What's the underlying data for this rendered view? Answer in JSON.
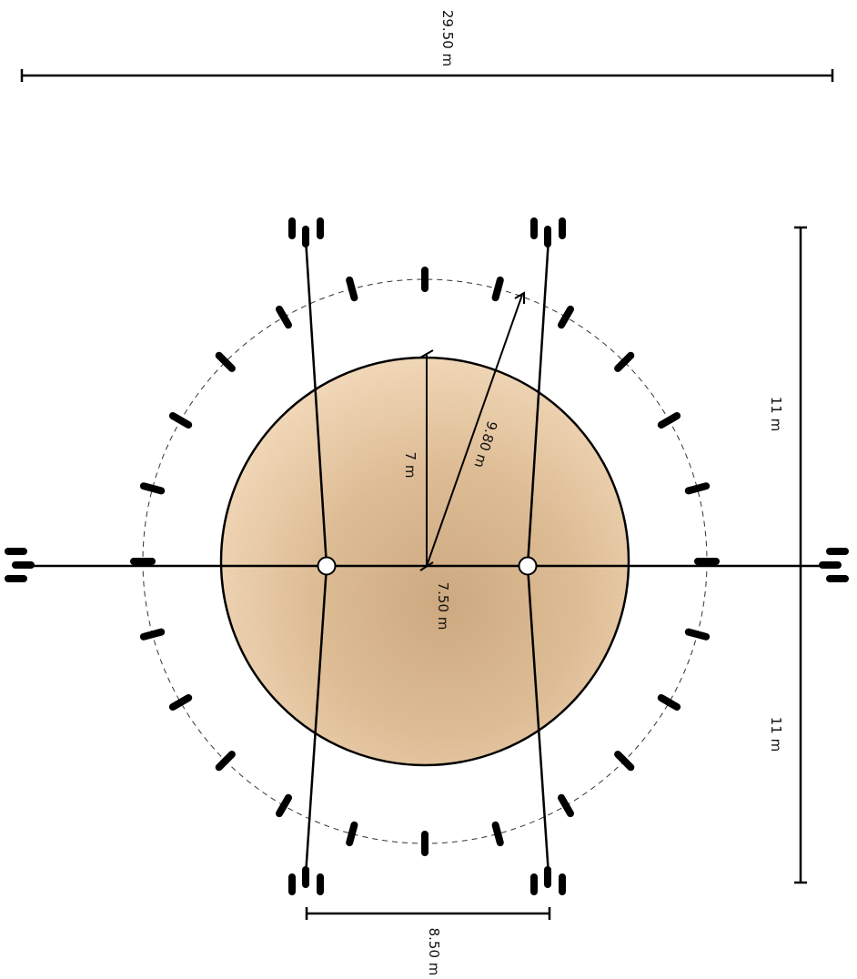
{
  "dimensions": {
    "overall_width": "29.50 m",
    "upper_half": "11 m",
    "lower_half": "11 m",
    "inner_radius": "7 m",
    "outer_radius": "9.80 m",
    "pole_offset": "7.50 m",
    "leg_spacing": "8.50 m"
  },
  "colors": {
    "ground_fill": "#e9caa6",
    "ground_shade": "#c9a57d",
    "lines": "#000000"
  },
  "elements": {
    "peg_count_ring": 24,
    "pole_count": 2,
    "guy_anchor_count": 6
  }
}
